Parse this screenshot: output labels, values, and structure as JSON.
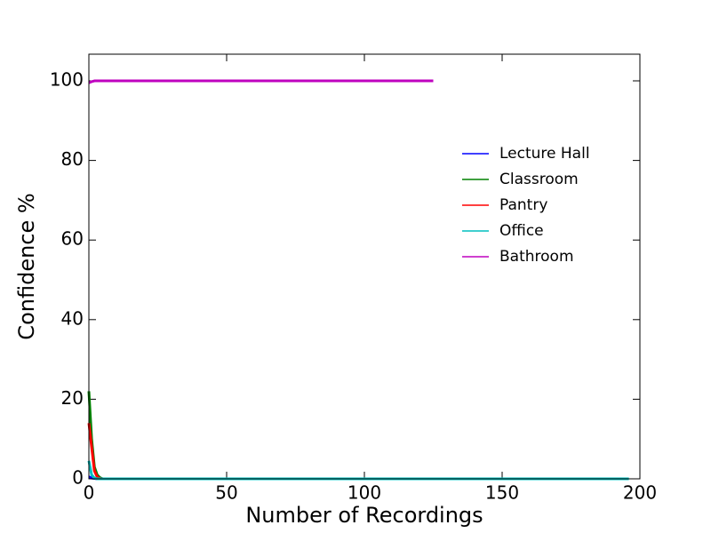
{
  "chart_data": {
    "type": "line",
    "xlabel": "Number of Recordings",
    "ylabel": "Confidence %",
    "series": [
      {
        "name": "Lecture Hall",
        "color": "#0000ff",
        "x": [
          0,
          1,
          2,
          3,
          195
        ],
        "values": [
          0.5,
          0.2,
          0.1,
          0,
          0
        ]
      },
      {
        "name": "Classroom",
        "color": "#008000",
        "x": [
          0,
          1,
          2,
          3,
          4,
          5
        ],
        "values": [
          22,
          10,
          3,
          1,
          0.3,
          0
        ]
      },
      {
        "name": "Pantry",
        "color": "#ff0000",
        "x": [
          0,
          1,
          2,
          3,
          4,
          5
        ],
        "values": [
          14,
          8,
          2,
          0.5,
          0.1,
          0
        ]
      },
      {
        "name": "Office",
        "color": "#00bfbf",
        "x": [
          0,
          1,
          2,
          3,
          196
        ],
        "values": [
          4.5,
          1,
          0.2,
          0,
          0
        ]
      },
      {
        "name": "Bathroom",
        "color": "#bf00bf",
        "x": [
          0,
          1,
          2,
          125
        ],
        "values": [
          99.5,
          99.8,
          100,
          100
        ]
      }
    ],
    "xlim": [
      0,
      200
    ],
    "xticks": [
      0,
      50,
      100,
      150,
      200
    ],
    "ylim": [
      0,
      106.7
    ],
    "yticks": [
      0,
      20,
      40,
      60,
      80,
      100
    ],
    "legend": "center right"
  }
}
